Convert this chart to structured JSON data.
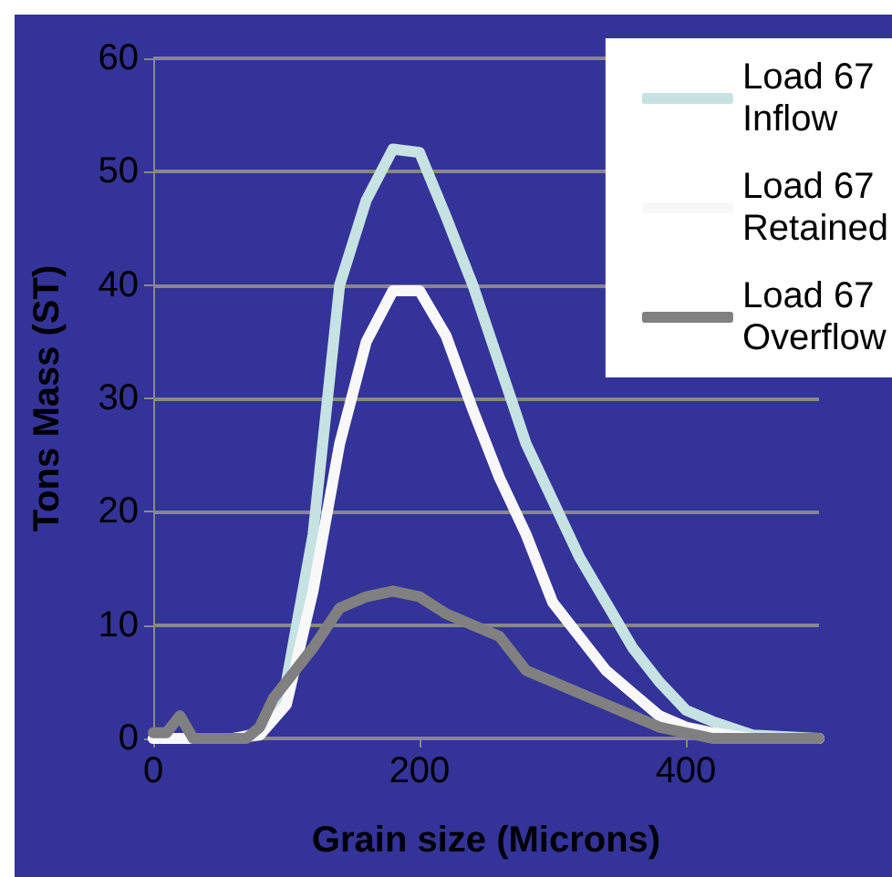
{
  "chart_data": {
    "type": "line",
    "xlabel": "Grain size (Microns)",
    "ylabel": "Tons Mass (ST)",
    "xlim": [
      0,
      500
    ],
    "xticks": [
      0,
      200,
      400
    ],
    "ylim": [
      0,
      60
    ],
    "yticks": [
      0,
      10,
      20,
      30,
      40,
      50,
      60
    ],
    "grid": "y",
    "legend": "top right",
    "marker": "none",
    "line_style": "solid",
    "series": [
      {
        "name": "Load 67 Inflow",
        "color": "#c6e2e3",
        "x": [
          0,
          20,
          40,
          60,
          80,
          100,
          120,
          140,
          160,
          180,
          200,
          220,
          240,
          260,
          280,
          300,
          320,
          340,
          360,
          380,
          400,
          420,
          450,
          500
        ],
        "values": [
          0,
          0,
          0,
          0,
          0.5,
          5,
          18,
          40,
          47.5,
          52,
          51.7,
          46,
          40,
          33,
          26,
          21,
          16,
          12,
          8,
          5,
          2.5,
          1.5,
          0.3,
          0
        ]
      },
      {
        "name": "Load 67 Retained",
        "color": "#f8f8f8",
        "x": [
          0,
          20,
          40,
          60,
          80,
          100,
          120,
          140,
          160,
          180,
          200,
          220,
          240,
          260,
          280,
          300,
          320,
          340,
          360,
          380,
          400,
          420,
          450,
          500
        ],
        "values": [
          0,
          0,
          0,
          0,
          0.3,
          3,
          13,
          26,
          35,
          39.5,
          39.5,
          35.5,
          29,
          23,
          18,
          12,
          9,
          6,
          4,
          2,
          1,
          0.5,
          0,
          0
        ]
      },
      {
        "name": "Load 67 Overflow",
        "color": "#808080",
        "x": [
          0,
          10,
          20,
          30,
          40,
          60,
          70,
          80,
          90,
          100,
          120,
          140,
          160,
          180,
          200,
          220,
          240,
          260,
          280,
          300,
          320,
          340,
          360,
          380,
          400,
          420,
          500
        ],
        "values": [
          0.5,
          0.5,
          2,
          0,
          0,
          0,
          0,
          1,
          3.5,
          5,
          8,
          11.5,
          12.5,
          13,
          12.5,
          11,
          10,
          9,
          6,
          5,
          4,
          3,
          2,
          1,
          0.5,
          0,
          0
        ]
      }
    ]
  }
}
